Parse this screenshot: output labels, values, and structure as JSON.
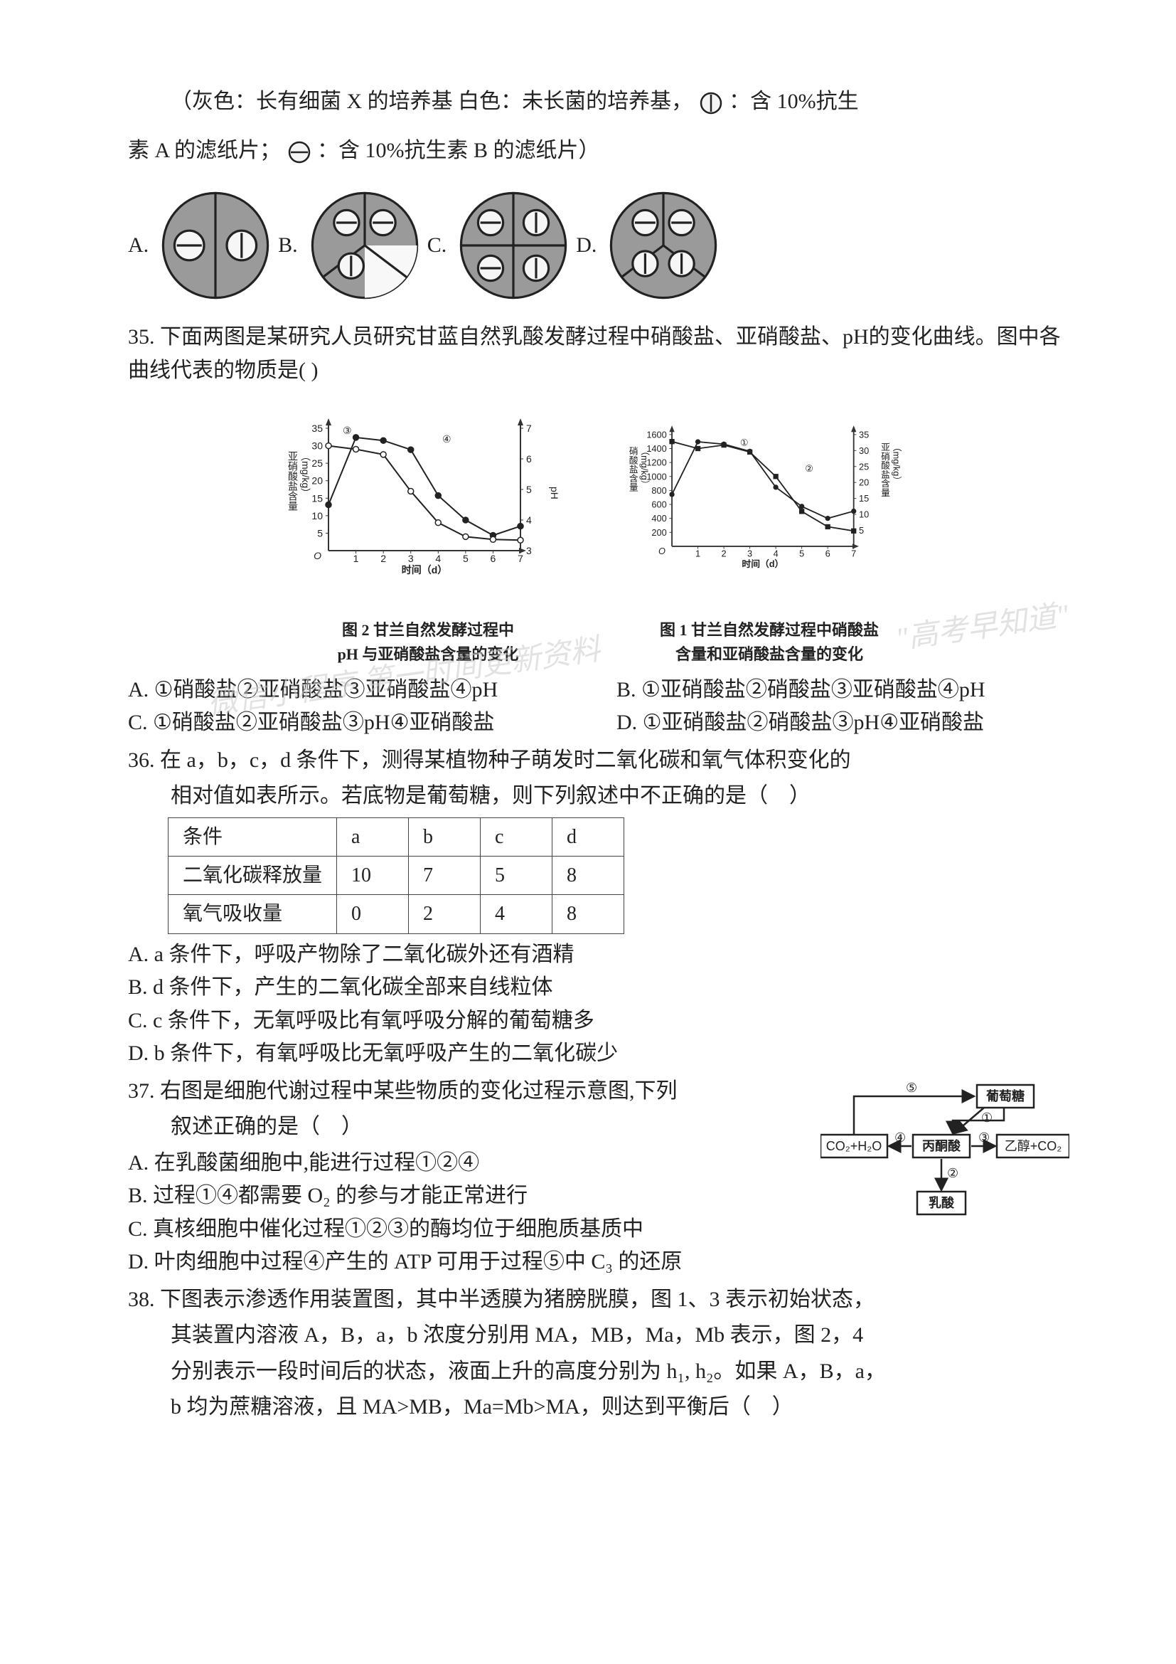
{
  "legend": {
    "gray_text_a": "（灰色：长有细菌 X 的培养基  白色：未长菌的培养基，",
    "gray_text_b": "：含 10%抗生",
    "line2a": "素 A 的滤纸片；  ",
    "line2b": "：含 10%抗生素 B 的滤纸片）"
  },
  "q34": {
    "labels": {
      "A": "A.",
      "B": "B.",
      "C": "C.",
      "D": "D."
    }
  },
  "q35": {
    "num": "35.",
    "stem": "下面两图是某研究人员研究甘蓝自然乳酸发酵过程中硝酸盐、亚硝酸盐、pH的变化曲线。图中各曲线代表的物质是(   )",
    "chart2": {
      "y_left_label": "亚硝酸盐含量（mg/kg）",
      "y_left_ticks": [
        5,
        10,
        15,
        20,
        25,
        30,
        35
      ],
      "y_right_label": "pH",
      "y_right_ticks": [
        3,
        4,
        5,
        6,
        7
      ],
      "x_label": "时间（d）",
      "x_ticks": [
        1,
        2,
        3,
        4,
        5,
        6,
        7
      ],
      "caption1": "图 2  甘兰自然发酵过程中",
      "caption2": "pH 与亚硝酸盐含量的变化",
      "curve3_circle_open": [
        {
          "d": 0,
          "v": 30
        },
        {
          "d": 1,
          "v": 29
        },
        {
          "d": 2,
          "v": 27.5
        },
        {
          "d": 3,
          "v": 17
        },
        {
          "d": 4,
          "v": 8
        },
        {
          "d": 5,
          "v": 4
        },
        {
          "d": 6,
          "v": 3.2
        },
        {
          "d": 7,
          "v": 3
        }
      ],
      "curve4_circle_fill": [
        {
          "d": 0,
          "v": 4.5
        },
        {
          "d": 1,
          "v": 6.7
        },
        {
          "d": 2,
          "v": 6.6
        },
        {
          "d": 3,
          "v": 6.3
        },
        {
          "d": 4,
          "v": 4.8
        },
        {
          "d": 5,
          "v": 4.0
        },
        {
          "d": 6,
          "v": 3.5
        },
        {
          "d": 7,
          "v": 3.8
        }
      ],
      "label3": "③",
      "label4": "④"
    },
    "chart1": {
      "y_left_label": "硝酸盐含量（mg/kg）",
      "y_left_ticks": [
        200,
        400,
        600,
        800,
        1000,
        1200,
        1400,
        1600
      ],
      "y_right_label": "亚硝酸盐含量（mg/kg）",
      "y_right_ticks": [
        5,
        10,
        15,
        20,
        25,
        30,
        35
      ],
      "x_label": "时间（d）",
      "x_ticks": [
        1,
        2,
        3,
        4,
        5,
        6,
        7
      ],
      "caption1": "图 1  甘兰自然发酵过程中硝酸盐",
      "caption2": "含量和亚硝酸盐含量的变化",
      "curve1_square": [
        {
          "d": 0,
          "v": 1500
        },
        {
          "d": 1,
          "v": 1400
        },
        {
          "d": 2,
          "v": 1450
        },
        {
          "d": 3,
          "v": 1350
        },
        {
          "d": 4,
          "v": 1000
        },
        {
          "d": 5,
          "v": 500
        },
        {
          "d": 6,
          "v": 280
        },
        {
          "d": 7,
          "v": 220
        }
      ],
      "curve2_circle": [
        {
          "d": 0,
          "v": 4.5
        },
        {
          "d": 1,
          "v": 6.7
        },
        {
          "d": 2,
          "v": 6.6
        },
        {
          "d": 3,
          "v": 6.3
        },
        {
          "d": 4,
          "v": 4.8
        },
        {
          "d": 5,
          "v": 4.0
        },
        {
          "d": 6,
          "v": 3.5
        },
        {
          "d": 7,
          "v": 3.8
        }
      ],
      "label1": "①",
      "label2": "②"
    },
    "optionA": "A. ①硝酸盐②亚硝酸盐③亚硝酸盐④pH",
    "optionB": "B. ①亚硝酸盐②硝酸盐③亚硝酸盐④pH",
    "optionC": "C. ①硝酸盐②亚硝酸盐③pH④亚硝酸盐",
    "optionD": "D. ①亚硝酸盐②硝酸盐③pH④亚硝酸盐"
  },
  "q36": {
    "num": "36.",
    "stem1": "在 a，b，c，d 条件下，测得某植物种子萌发时二氧化碳和氧气体积变化的",
    "stem2": "相对值如表所示。若底物是葡萄糖，则下列叙述中不正确的是（　）",
    "table": {
      "columns": [
        "条件",
        "a",
        "b",
        "c",
        "d"
      ],
      "rows": [
        [
          "二氧化碳释放量",
          "10",
          "7",
          "5",
          "8"
        ],
        [
          "氧气吸收量",
          "0",
          "2",
          "4",
          "8"
        ]
      ]
    },
    "optA": "A. a 条件下，呼吸产物除了二氧化碳外还有酒精",
    "optB": "B. d 条件下，产生的二氧化碳全部来自线粒体",
    "optC": "C. c 条件下，无氧呼吸比有氧呼吸分解的葡萄糖多",
    "optD": "D. b 条件下，有氧呼吸比无氧呼吸产生的二氧化碳少"
  },
  "q37": {
    "num": "37.",
    "stem1": "右图是细胞代谢过程中某些物质的变化过程示意图,下列",
    "stem2": "叙述正确的是（　）",
    "optA": "A. 在乳酸菌细胞中,能进行过程①②④",
    "optB": "B. 过程①④都需要 O₂ 的参与才能正常进行",
    "optC": "C. 真核细胞中催化过程①②③的酶均位于细胞质基质中",
    "optD": "D. 叶肉细胞中过程④产生的 ATP 可用于过程⑤中 C₃ 的还原",
    "dia": {
      "nodes": {
        "glucose": "葡萄糖",
        "pyruvate": "丙酮酸",
        "co2h2o": "CO₂+H₂O",
        "lactic": "乳酸",
        "ethanol": "乙醇+CO₂"
      },
      "edges": {
        "e1": "①",
        "e2": "②",
        "e3": "③",
        "e4": "④",
        "e5": "⑤"
      }
    }
  },
  "q38": {
    "num": "38.",
    "line1": "下图表示渗透作用装置图，其中半透膜为猪膀胱膜，图 1、3 表示初始状态，",
    "line2": "其装置内溶液 A，B，a，b 浓度分别用 MA，MB，Ma，Mb 表示，图 2，4",
    "line3": "分别表示一段时间后的状态，液面上升的高度分别为 h₁, h₂。如果 A，B，a，",
    "line4": "b 均为蔗糖溶液，且 MA>MB，Ma=Mb>MA，则达到平衡后（　）"
  },
  "watermark1": "\"高考早知道\"",
  "watermark2": "微信小程序  第一时间更新资料",
  "colors": {
    "ink": "#222222",
    "midgray": "#7a7a7a",
    "dish_gray": "#9a9a9a",
    "dish_white": "#f8f8f8",
    "chart_axis": "#333333"
  }
}
